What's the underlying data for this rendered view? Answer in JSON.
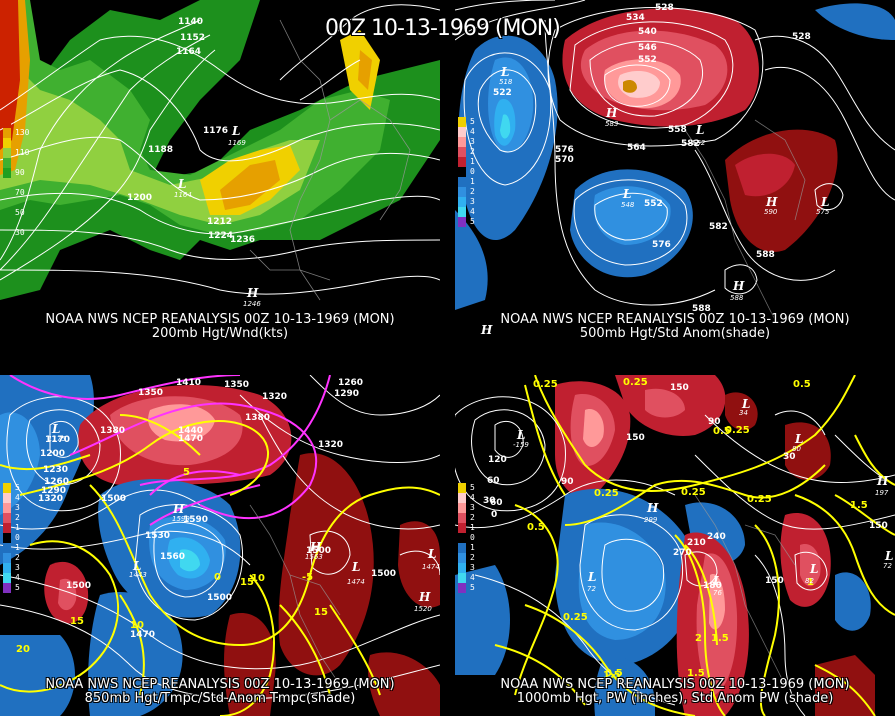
{
  "title": "00Z 10-13-1969 (MON)",
  "panels": [
    {
      "caption_line1": "NOAA NWS NCEP REANALYSIS 00Z 10-13-1969 (MON)",
      "caption_line2": "200mb Hgt/Wnd(kts)",
      "legend_labels": [
        "130",
        "110",
        "90",
        "70",
        "50",
        "30"
      ],
      "contour_labels": [
        "1140",
        "1152",
        "1164",
        "1176",
        "1188",
        "1200",
        "1212",
        "1224",
        "1236"
      ],
      "centers": [
        {
          "type": "L",
          "value": "1169"
        },
        {
          "type": "L",
          "value": "1164"
        },
        {
          "type": "H",
          "value": "1246"
        }
      ]
    },
    {
      "caption_line1": "NOAA NWS NCEP REANALYSIS 00Z 10-13-1969 (MON)",
      "caption_line2": "500mb Hgt/Std Anom(shade)",
      "legend_labels": [
        "5",
        "4",
        "3",
        "2",
        "1",
        "0",
        "1",
        "2",
        "3",
        "4",
        "5"
      ],
      "contour_labels": [
        "528",
        "534",
        "540",
        "546",
        "552",
        "522",
        "558",
        "564",
        "570",
        "576",
        "582",
        "552",
        "576",
        "582",
        "588",
        "588",
        "528"
      ],
      "centers": [
        {
          "type": "L",
          "value": "518"
        },
        {
          "type": "H",
          "value": "583"
        },
        {
          "type": "L",
          "value": "552"
        },
        {
          "type": "L",
          "value": "548"
        },
        {
          "type": "H",
          "value": "590"
        },
        {
          "type": "L",
          "value": "575"
        },
        {
          "type": "H",
          "value": "588"
        },
        {
          "type": "H",
          "value": ""
        }
      ]
    },
    {
      "caption_line1": "NOAA NWS NCEP REANALYSIS 00Z 10-13-1969 (MON)",
      "caption_line2": "850mb Hgt/Tmpc/Std Anom Tmpc(shade)",
      "legend_labels": [
        "5",
        "4",
        "3",
        "2",
        "1",
        "0",
        "1",
        "2",
        "3",
        "4",
        "5"
      ],
      "contour_labels": [
        "1380",
        "1350",
        "1410",
        "1350",
        "1320",
        "1260",
        "1290",
        "1170",
        "1200",
        "1230",
        "1260",
        "1290",
        "1320",
        "1380",
        "1440",
        "1470",
        "1380",
        "1500",
        "1530",
        "1560",
        "1590",
        "1500",
        "1500",
        "1470",
        "1320",
        "1500",
        "1500"
      ],
      "temp_labels": [
        "5",
        "10",
        "15",
        "-5",
        "0",
        "15",
        "10",
        "20",
        "15"
      ],
      "centers": [
        {
          "type": "L",
          "value": "1175"
        },
        {
          "type": "H",
          "value": "1599"
        },
        {
          "type": "L",
          "value": "1443"
        },
        {
          "type": "L",
          "value": "1474"
        },
        {
          "type": "L",
          "value": "1474"
        },
        {
          "type": "H",
          "value": "1520"
        },
        {
          "type": "H",
          "value": "1563"
        }
      ]
    },
    {
      "caption_line1": "NOAA NWS NCEP REANALYSIS 00Z 10-13-1969 (MON)",
      "caption_line2": "1000mb Hgt, PW (inches), Std Anom PW (shade)",
      "legend_labels": [
        "5",
        "4",
        "3",
        "2",
        "1",
        "0",
        "1",
        "2",
        "3",
        "4",
        "5"
      ],
      "contour_labels": [
        "120",
        "150",
        "90",
        "60",
        "30",
        "0",
        "90",
        "60",
        "120",
        "150",
        "210",
        "240",
        "270",
        "150",
        "30",
        "150",
        "180"
      ],
      "pw_labels": [
        "0.25",
        "0.25",
        "0.5",
        "0.25",
        "0.25",
        "0.25",
        "0.5",
        "0.25",
        "1.5",
        "2",
        "1.5",
        "0.5",
        "1",
        "1.5",
        "0.5",
        "0.25",
        "1.5"
      ],
      "centers": [
        {
          "type": "L",
          "value": "-159"
        },
        {
          "type": "L",
          "value": "72"
        },
        {
          "type": "L",
          "value": "76"
        },
        {
          "type": "H",
          "value": "299"
        },
        {
          "type": "L",
          "value": "34"
        },
        {
          "type": "L",
          "value": "80"
        },
        {
          "type": "L",
          "value": "82"
        },
        {
          "type": "H",
          "value": "197"
        },
        {
          "type": "L",
          "value": "72"
        }
      ]
    }
  ],
  "colors": {
    "wind": [
      "#ff0000",
      "#cc2200",
      "#e6a000",
      "#f0d000",
      "#90d040",
      "#40b030",
      "#20a020"
    ],
    "anom_pos": [
      "#ffcccc",
      "#ff9999",
      "#e05060",
      "#c02030",
      "#901010"
    ],
    "anom_neg": [
      "#2070c0",
      "#3090e0",
      "#30b0f0",
      "#40d8f0",
      "#8030c0"
    ],
    "yellow": "#ffff00",
    "magenta": "#ff33ff"
  }
}
